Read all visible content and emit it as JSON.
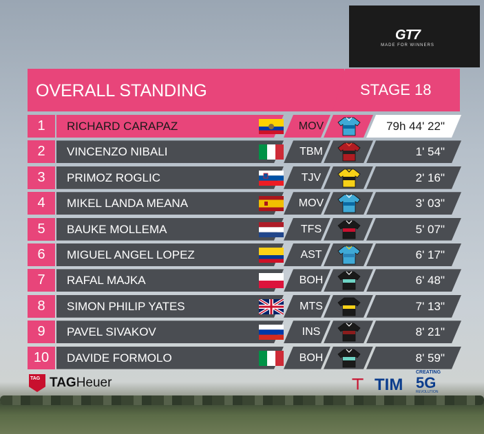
{
  "header": {
    "title": "OVERALL STANDING",
    "stage": "STAGE 18"
  },
  "logo": {
    "wordmark": "GT7",
    "tagline": "MADE FOR WINNERS"
  },
  "standings": [
    {
      "rank": "1",
      "name": "RICHARD CARAPAZ",
      "flag": "ecuador",
      "team": "MOV",
      "jersey": "movistar",
      "time": "79h 44' 22\""
    },
    {
      "rank": "2",
      "name": "VINCENZO NIBALI",
      "flag": "italy",
      "team": "TBM",
      "jersey": "bahrain",
      "time": "1' 54\""
    },
    {
      "rank": "3",
      "name": "PRIMOZ ROGLIC",
      "flag": "slovenia",
      "team": "TJV",
      "jersey": "jumbo",
      "time": "2' 16\""
    },
    {
      "rank": "4",
      "name": "MIKEL LANDA MEANA",
      "flag": "spain",
      "team": "MOV",
      "jersey": "movistar",
      "time": "3' 03\""
    },
    {
      "rank": "5",
      "name": "BAUKE MOLLEMA",
      "flag": "netherlands",
      "team": "TFS",
      "jersey": "trek",
      "time": "5' 07\""
    },
    {
      "rank": "6",
      "name": "MIGUEL ANGEL LOPEZ",
      "flag": "colombia",
      "team": "AST",
      "jersey": "astana",
      "time": "6' 17\""
    },
    {
      "rank": "7",
      "name": "RAFAL MAJKA",
      "flag": "poland",
      "team": "BOH",
      "jersey": "bora",
      "time": "6' 48\""
    },
    {
      "rank": "8",
      "name": "SIMON PHILIP YATES",
      "flag": "uk",
      "team": "MTS",
      "jersey": "mitchelton",
      "time": "7' 13\""
    },
    {
      "rank": "9",
      "name": "PAVEL SIVAKOV",
      "flag": "russia",
      "team": "INS",
      "jersey": "ineos",
      "time": "8' 21\""
    },
    {
      "rank": "10",
      "name": "DAVIDE FORMOLO",
      "flag": "italy",
      "team": "BOH",
      "jersey": "bora",
      "time": "8' 59\""
    }
  ],
  "sponsors": {
    "tag_heuer": {
      "shield": "TAG",
      "text_bold": "TAG",
      "text_rest": "Heuer"
    },
    "tim": {
      "mark": "⊤",
      "text": "TIM",
      "creating": "CREATING",
      "fiveg": "5G",
      "revolution": "REVOLUTION"
    }
  },
  "colors": {
    "accent": "#e8457a",
    "row_bg": "#4a4d52"
  }
}
